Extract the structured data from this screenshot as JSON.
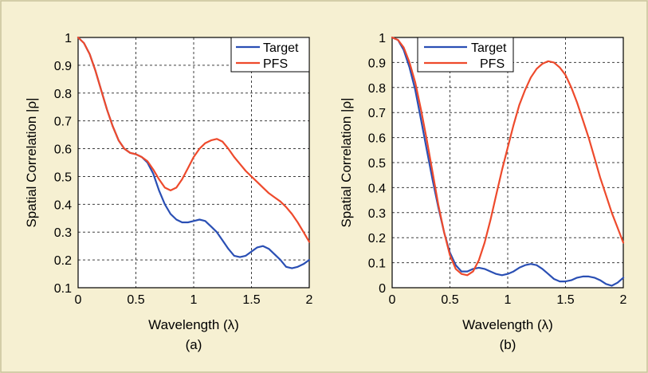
{
  "chart_data": [
    {
      "type": "line",
      "panel_label": "(a)",
      "xlabel": "Wavelength (λ)",
      "ylabel": "Spatial Correlation |ρ|",
      "xlim": [
        0,
        2
      ],
      "ylim": [
        0.1,
        1
      ],
      "xticks": [
        0,
        0.5,
        1,
        1.5,
        2
      ],
      "xtick_labels": [
        "0",
        "0.5",
        "1",
        "1.5",
        "2"
      ],
      "yticks": [
        0.1,
        0.2,
        0.3,
        0.4,
        0.5,
        0.6,
        0.7,
        0.8,
        0.9,
        1
      ],
      "ytick_labels": [
        "0.1",
        "0.2",
        "0.3",
        "0.4",
        "0.5",
        "0.6",
        "0.7",
        "0.8",
        "0.9",
        "1"
      ],
      "grid": true,
      "legend_position": "top-right",
      "series": [
        {
          "name": "Target",
          "color": "#2a4fb4",
          "x": [
            0,
            0.05,
            0.1,
            0.15,
            0.2,
            0.25,
            0.3,
            0.35,
            0.4,
            0.45,
            0.5,
            0.55,
            0.6,
            0.65,
            0.7,
            0.75,
            0.8,
            0.85,
            0.9,
            0.95,
            1.0,
            1.05,
            1.1,
            1.15,
            1.2,
            1.25,
            1.3,
            1.35,
            1.4,
            1.45,
            1.5,
            1.55,
            1.6,
            1.65,
            1.7,
            1.75,
            1.8,
            1.85,
            1.9,
            1.95,
            2.0
          ],
          "y": [
            1.0,
            0.98,
            0.94,
            0.88,
            0.81,
            0.74,
            0.68,
            0.63,
            0.6,
            0.585,
            0.58,
            0.57,
            0.55,
            0.51,
            0.45,
            0.4,
            0.365,
            0.345,
            0.335,
            0.335,
            0.34,
            0.345,
            0.34,
            0.32,
            0.3,
            0.27,
            0.24,
            0.215,
            0.21,
            0.215,
            0.23,
            0.245,
            0.25,
            0.24,
            0.22,
            0.2,
            0.175,
            0.17,
            0.175,
            0.185,
            0.2
          ]
        },
        {
          "name": "PFS",
          "color": "#ee4a2c",
          "x": [
            0,
            0.05,
            0.1,
            0.15,
            0.2,
            0.25,
            0.3,
            0.35,
            0.4,
            0.45,
            0.5,
            0.55,
            0.6,
            0.65,
            0.7,
            0.75,
            0.8,
            0.85,
            0.9,
            0.95,
            1.0,
            1.05,
            1.1,
            1.15,
            1.2,
            1.25,
            1.3,
            1.35,
            1.4,
            1.45,
            1.5,
            1.55,
            1.6,
            1.65,
            1.7,
            1.75,
            1.8,
            1.85,
            1.9,
            1.95,
            2.0
          ],
          "y": [
            1.0,
            0.98,
            0.94,
            0.88,
            0.81,
            0.74,
            0.68,
            0.63,
            0.6,
            0.585,
            0.58,
            0.57,
            0.555,
            0.525,
            0.49,
            0.46,
            0.45,
            0.46,
            0.49,
            0.53,
            0.57,
            0.6,
            0.62,
            0.63,
            0.635,
            0.625,
            0.6,
            0.57,
            0.545,
            0.52,
            0.5,
            0.48,
            0.46,
            0.44,
            0.425,
            0.41,
            0.39,
            0.365,
            0.335,
            0.3,
            0.265
          ]
        }
      ]
    },
    {
      "type": "line",
      "panel_label": "(b)",
      "xlabel": "Wavelength (λ)",
      "ylabel": "Spatial Correlation |ρ|",
      "xlim": [
        0,
        2
      ],
      "ylim": [
        0,
        1
      ],
      "xticks": [
        0,
        0.5,
        1,
        1.5,
        2
      ],
      "xtick_labels": [
        "0",
        "0.5",
        "1",
        "1.5",
        "2"
      ],
      "yticks": [
        0,
        0.1,
        0.2,
        0.3,
        0.4,
        0.5,
        0.6,
        0.7,
        0.8,
        0.9,
        1
      ],
      "ytick_labels": [
        "0",
        "0.1",
        "0.2",
        "0.3",
        "0.4",
        "0.5",
        "0.6",
        "0.7",
        "0.8",
        "0.9",
        "1"
      ],
      "grid": true,
      "legend_position": "top-center",
      "series": [
        {
          "name": "Target",
          "color": "#2a4fb4",
          "x": [
            0,
            0.05,
            0.1,
            0.15,
            0.2,
            0.25,
            0.3,
            0.35,
            0.4,
            0.45,
            0.5,
            0.55,
            0.6,
            0.65,
            0.7,
            0.75,
            0.8,
            0.85,
            0.9,
            0.95,
            1.0,
            1.05,
            1.1,
            1.15,
            1.2,
            1.25,
            1.3,
            1.35,
            1.4,
            1.45,
            1.5,
            1.55,
            1.6,
            1.65,
            1.7,
            1.75,
            1.8,
            1.85,
            1.9,
            1.95,
            2.0
          ],
          "y": [
            1.0,
            0.99,
            0.95,
            0.88,
            0.79,
            0.67,
            0.55,
            0.43,
            0.32,
            0.22,
            0.14,
            0.09,
            0.065,
            0.065,
            0.075,
            0.08,
            0.075,
            0.065,
            0.055,
            0.05,
            0.055,
            0.065,
            0.08,
            0.09,
            0.095,
            0.09,
            0.075,
            0.055,
            0.035,
            0.025,
            0.025,
            0.03,
            0.04,
            0.045,
            0.045,
            0.04,
            0.03,
            0.015,
            0.008,
            0.02,
            0.04
          ]
        },
        {
          "name": "PFS",
          "color": "#ee4a2c",
          "x": [
            0,
            0.05,
            0.1,
            0.15,
            0.2,
            0.25,
            0.3,
            0.35,
            0.4,
            0.45,
            0.5,
            0.55,
            0.6,
            0.65,
            0.7,
            0.75,
            0.8,
            0.85,
            0.9,
            0.95,
            1.0,
            1.05,
            1.1,
            1.15,
            1.2,
            1.25,
            1.3,
            1.35,
            1.4,
            1.45,
            1.5,
            1.55,
            1.6,
            1.65,
            1.7,
            1.75,
            1.8,
            1.85,
            1.9,
            1.95,
            2.0
          ],
          "y": [
            1.0,
            0.99,
            0.96,
            0.9,
            0.82,
            0.71,
            0.59,
            0.46,
            0.33,
            0.22,
            0.13,
            0.075,
            0.055,
            0.05,
            0.065,
            0.11,
            0.18,
            0.27,
            0.37,
            0.47,
            0.56,
            0.65,
            0.73,
            0.79,
            0.84,
            0.875,
            0.895,
            0.905,
            0.9,
            0.88,
            0.85,
            0.8,
            0.74,
            0.67,
            0.6,
            0.52,
            0.44,
            0.37,
            0.3,
            0.24,
            0.18
          ]
        }
      ]
    }
  ]
}
